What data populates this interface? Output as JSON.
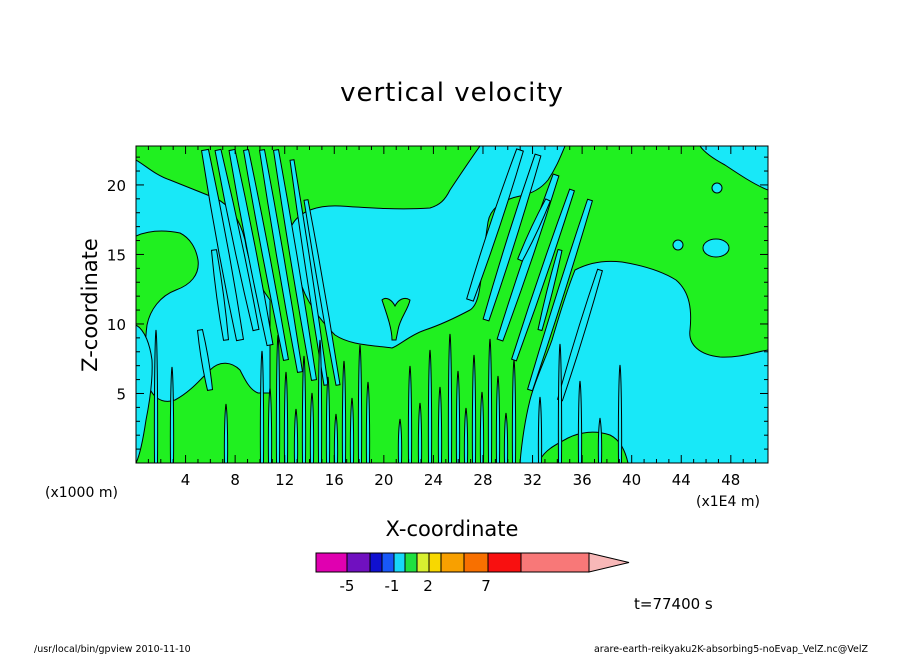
{
  "chart_data": {
    "type": "contour",
    "title": "vertical velocity",
    "xlabel": "X-coordinate",
    "ylabel": "Z-coordinate",
    "xunit_left": "(x1000 m)",
    "xunit_right": "(x1E4 m)",
    "xlim": [
      0,
      51
    ],
    "ylim": [
      0,
      22.8
    ],
    "xticks": [
      4,
      8,
      12,
      16,
      20,
      24,
      28,
      32,
      36,
      40,
      44,
      48
    ],
    "yticks": [
      5,
      10,
      15,
      20
    ],
    "colorbar": {
      "colors": [
        "#e000b0",
        "#7010c0",
        "#1010d0",
        "#1858f8",
        "#18d8f8",
        "#20e040",
        "#d8f030",
        "#f8d800",
        "#f8a000",
        "#f87000",
        "#f81010",
        "#f87878"
      ],
      "labels": [
        "-5",
        "-1",
        "2",
        "7"
      ],
      "label_values": [
        -5,
        -1,
        2,
        7
      ]
    },
    "fill_colors": {
      "positive": "#20f020",
      "negative": "#18e8f8"
    },
    "time_label": "t=77400 s",
    "footer_left": "/usr/local/bin/gpview  2010-11-10",
    "footer_right": "arare-earth-reikyaku2K-absorbing5-noEvap_VelZ.nc@VelZ"
  }
}
